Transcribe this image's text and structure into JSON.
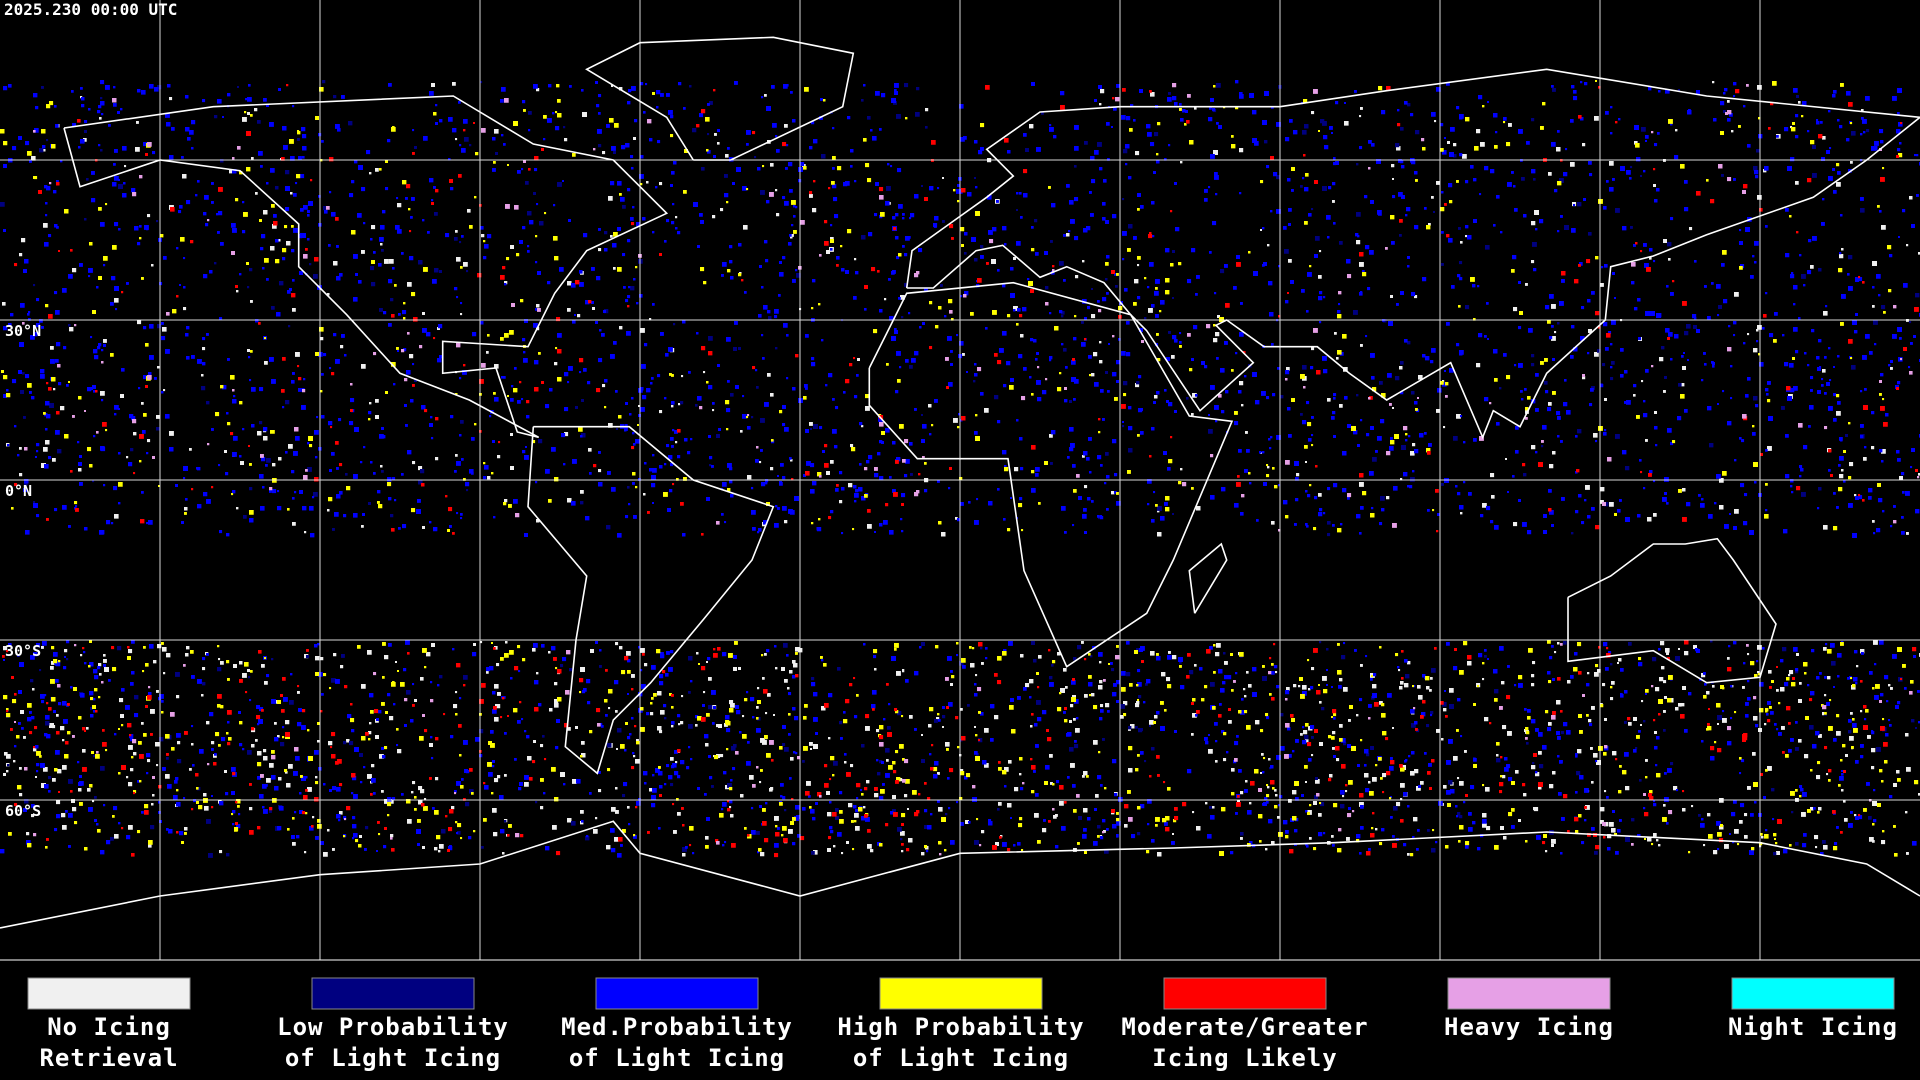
{
  "header": {
    "timestamp": "2025.230 00:00 UTC"
  },
  "map": {
    "latitude_labels": [
      "30°N",
      "0°N",
      "30°S",
      "60°S"
    ]
  },
  "legend": {
    "items": [
      {
        "label_lines": [
          "No Icing",
          "Retrieval"
        ],
        "color": "#f0f0f0"
      },
      {
        "label_lines": [
          "Low Probability",
          "of Light Icing"
        ],
        "color": "#000080"
      },
      {
        "label_lines": [
          "Med.Probability",
          "of Light Icing"
        ],
        "color": "#0000ff"
      },
      {
        "label_lines": [
          "High Probability",
          "of Light Icing"
        ],
        "color": "#ffff00"
      },
      {
        "label_lines": [
          "Moderate/Greater",
          "Icing Likely"
        ],
        "color": "#ff0000"
      },
      {
        "label_lines": [
          "Heavy Icing"
        ],
        "color": "#e6a0e6"
      },
      {
        "label_lines": [
          "Night Icing"
        ],
        "color": "#00ffff"
      }
    ]
  }
}
